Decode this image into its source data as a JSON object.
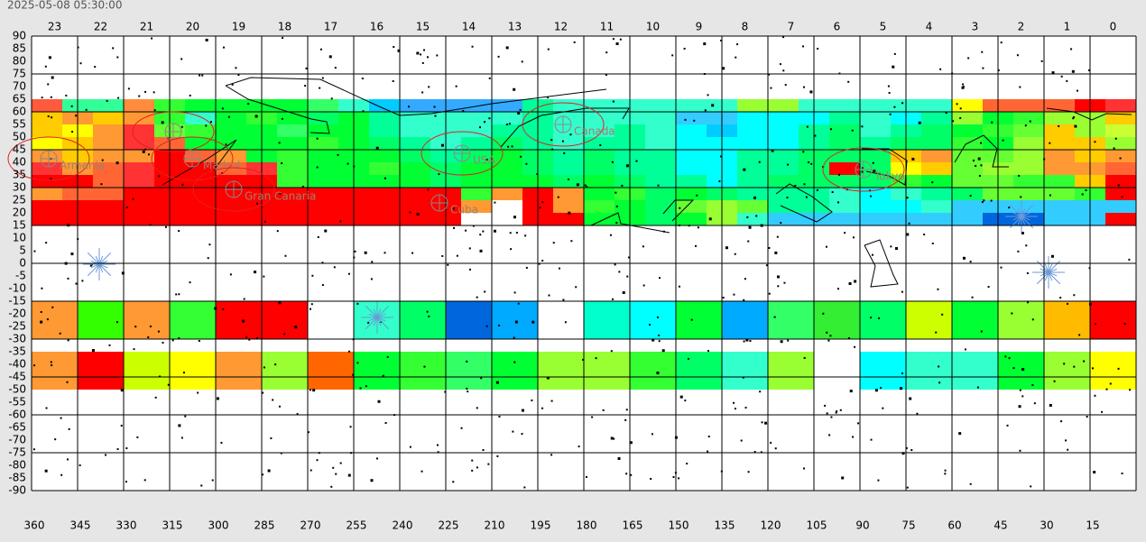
{
  "timestamp": "2025-05-08 05:30:00",
  "hour_labels": [
    23,
    22,
    21,
    20,
    19,
    18,
    17,
    16,
    15,
    14,
    13,
    12,
    11,
    10,
    9,
    8,
    7,
    6,
    5,
    4,
    3,
    2,
    1,
    0
  ],
  "ra_labels": [
    360,
    345,
    330,
    315,
    300,
    285,
    270,
    255,
    240,
    225,
    210,
    195,
    180,
    165,
    150,
    135,
    120,
    105,
    90,
    75,
    60,
    45,
    30,
    15
  ],
  "dec_labels": [
    90,
    85,
    80,
    75,
    70,
    65,
    60,
    55,
    50,
    45,
    40,
    35,
    30,
    25,
    20,
    15,
    10,
    5,
    0,
    -5,
    -10,
    -15,
    -20,
    -25,
    -30,
    -35,
    -40,
    -45,
    -50,
    -55,
    -60,
    -65,
    -70,
    -75,
    -80,
    -85,
    -90
  ],
  "locations": [
    "Armenia",
    "Madrid",
    "Gran Canaria",
    "Cuba",
    "USA",
    "Canada",
    "Tokyo"
  ],
  "heatmap": {
    "north_rows": [
      [
        "#ff5a3c",
        "#33ff99",
        "#33ff99",
        "#ff8c3c",
        "#33ff33",
        "#00ff33",
        "#00ff33",
        "#00ff33",
        "#00ff33",
        "#33ff66",
        "#33ffcc",
        "#00ccff",
        "#33aaff",
        "#33aaff",
        "#33aaff",
        "#33aaff",
        "#00ff99",
        "#33ffcc",
        "#33ffcc",
        "#33ffcc",
        "#33ffcc",
        "#33ffcc",
        "#33ffcc",
        "#99ff33",
        "#99ff33",
        "#33ffcc",
        "#33ffcc",
        "#33ffcc",
        "#33ffcc",
        "#33ffcc",
        "#ffff00",
        "#ff6633",
        "#ff6633",
        "#ff6633",
        "#ff0000",
        "#ff3333"
      ],
      [
        "#ffcc00",
        "#ff9933",
        "#ffcc00",
        "#ff9933",
        "#33ff33",
        "#33ffcc",
        "#00ff33",
        "#33ff33",
        "#00ff33",
        "#00ff66",
        "#00ff33",
        "#00ff99",
        "#33ffcc",
        "#33ffcc",
        "#33ffcc",
        "#33ffcc",
        "#00ff99",
        "#33ffcc",
        "#33ffcc",
        "#33ffcc",
        "#33ffcc",
        "#33ccff",
        "#33ccff",
        "#00ffff",
        "#00ffff",
        "#00ffff",
        "#00ff99",
        "#33ffcc",
        "#00ffff",
        "#00ff99",
        "#99ff33",
        "#00ff33",
        "#33ff33",
        "#99ff33",
        "#99ff33",
        "#ffcc00"
      ],
      [
        "#ffcc00",
        "#ffff00",
        "#ff9933",
        "#ff3333",
        "#66ff33",
        "#33ff33",
        "#00ff33",
        "#00ff33",
        "#33ff66",
        "#00ff33",
        "#00ff33",
        "#00ff99",
        "#33ffcc",
        "#33ffcc",
        "#33ffcc",
        "#00ff99",
        "#00ff99",
        "#33ffcc",
        "#33ffcc",
        "#00ff99",
        "#33ffcc",
        "#00ffff",
        "#00ccff",
        "#00ffff",
        "#00ffff",
        "#00ff99",
        "#00ff66",
        "#33ffcc",
        "#00ff99",
        "#00ff66",
        "#00ff33",
        "#33ff33",
        "#66ff33",
        "#ffcc00",
        "#99ff33",
        "#ccff33"
      ],
      [
        "#ffff00",
        "#ffcc00",
        "#ff9933",
        "#ff3333",
        "#ff6633",
        "#00ff33",
        "#00ff33",
        "#00ff33",
        "#00ff33",
        "#33ff33",
        "#00ff33",
        "#00ff66",
        "#00ff99",
        "#33ffcc",
        "#00ff99",
        "#00ff66",
        "#00ff99",
        "#33ffcc",
        "#00ff99",
        "#00ff99",
        "#33ffcc",
        "#00ffff",
        "#00ffff",
        "#00ffff",
        "#00ffff",
        "#00ff99",
        "#00ff66",
        "#00ff99",
        "#00ff66",
        "#00ff66",
        "#33ff33",
        "#00ff33",
        "#99ff33",
        "#ffcc00",
        "#ffcc00",
        "#99ff33"
      ],
      [
        "#ff9933",
        "#ffcc00",
        "#ff9933",
        "#ff9933",
        "#ff0000",
        "#ff6633",
        "#ff9933",
        "#00ff33",
        "#33ff33",
        "#00ff33",
        "#00ff33",
        "#00ff33",
        "#00ff66",
        "#00ff99",
        "#00ff66",
        "#00ff33",
        "#00ff66",
        "#00ff99",
        "#00ff66",
        "#00ff99",
        "#00ff99",
        "#00ffff",
        "#00ffff",
        "#00ff99",
        "#00ff99",
        "#00ff66",
        "#00ff66",
        "#00ff66",
        "#ffcc00",
        "#ff9933",
        "#66ff33",
        "#66ff33",
        "#99ff33",
        "#ff9933",
        "#ffcc00",
        "#ff9933"
      ],
      [
        "#ff3333",
        "#ff9933",
        "#ff6633",
        "#ff3333",
        "#ff0000",
        "#ff0000",
        "#ff6633",
        "#ff3333",
        "#33ff33",
        "#00ff33",
        "#00ff33",
        "#33ff33",
        "#00ff33",
        "#00ff66",
        "#00ff33",
        "#00ff33",
        "#00ff66",
        "#00ff99",
        "#00ff66",
        "#00ff99",
        "#00ff99",
        "#00ffff",
        "#00ffff",
        "#00ff99",
        "#00ff99",
        "#00ff66",
        "#ff0000",
        "#00ff66",
        "#ffff00",
        "#ffcc00",
        "#66ff33",
        "#99ff33",
        "#99ff33",
        "#ff9933",
        "#ff9933",
        "#ff6633"
      ],
      [
        "#ff0000",
        "#ff0000",
        "#ff6633",
        "#ff3333",
        "#ff0000",
        "#ff0000",
        "#ff0000",
        "#ff0000",
        "#33ff33",
        "#00ff33",
        "#00ff33",
        "#00ff33",
        "#00ff33",
        "#00ff66",
        "#00ff33",
        "#00ff33",
        "#00ff33",
        "#00ff66",
        "#00ff33",
        "#00ff66",
        "#00ff99",
        "#00ff99",
        "#00ffff",
        "#00ff99",
        "#00ff66",
        "#00ff66",
        "#00ff66",
        "#00ff66",
        "#33ff33",
        "#00ff33",
        "#66ff33",
        "#66ff33",
        "#33ff33",
        "#33ff33",
        "#ffcc00",
        "#ff0000"
      ],
      [
        "#ff9933",
        "#ff6633",
        "#ff6633",
        "#ff0000",
        "#ff0000",
        "#ff0000",
        "#ff0000",
        "#ff0000",
        "#ff0000",
        "#ff0000",
        "#ff0000",
        "#ff0000",
        "#ff0000",
        "#ff0000",
        "#33ff33",
        "#ff9933",
        "#ff0000",
        "#ff9933",
        "#00ff33",
        "#33ff33",
        "#00ff66",
        "#00ff33",
        "#00ff66",
        "#00ff99",
        "#00ff99",
        "#00ff99",
        "#33ffcc",
        "#00ffff",
        "#33ffcc",
        "#00ff99",
        "#00ff66",
        "#66ff33",
        "#66ff33",
        "#66ff33",
        "#33ff33",
        "#ff0000"
      ],
      [
        "#ff0000",
        "#ff0000",
        "#ff0000",
        "#ff0000",
        "#ff0000",
        "#ff0000",
        "#ff0000",
        "#ff0000",
        "#ff0000",
        "#ff0000",
        "#ff0000",
        "#ff0000",
        "#ff0000",
        "#ff0000",
        "#ff9933",
        "#ffffff",
        "#ff0000",
        "#ff9933",
        "#33ff33",
        "#00ff33",
        "#00ff66",
        "#66ff33",
        "#99ff33",
        "#66ff33",
        "#00ff99",
        "#00ff99",
        "#33ffcc",
        "#00ffff",
        "#00ffff",
        "#33ffcc",
        "#33ccff",
        "#33ccff",
        "#33ccff",
        "#33ccff",
        "#33ccff",
        "#33ccff"
      ],
      [
        "#ff0000",
        "#ff0000",
        "#ff0000",
        "#ff0000",
        "#ff0000",
        "#ff0000",
        "#ff0000",
        "#ff0000",
        "#ff0000",
        "#ff0000",
        "#ff0000",
        "#ff0000",
        "#ff0000",
        "#ff0000",
        "#ffffff",
        "#ffffff",
        "#ff0000",
        "#ff0000",
        "#00ff33",
        "#00ff33",
        "#00ff66",
        "#00ff33",
        "#99ff33",
        "#33ffcc",
        "#33ccff",
        "#33ccff",
        "#33ccff",
        "#33ccff",
        "#33ccff",
        "#33ccff",
        "#33ccff",
        "#0066dd",
        "#0066dd",
        "#33ccff",
        "#33ccff",
        "#ff0000"
      ]
    ],
    "south_band_1": [
      "#ff9933",
      "#33ff00",
      "#ff9933",
      "#33ff33",
      "#ff0000",
      "#ff0000",
      "#ffffff",
      "#33ffcc",
      "#00ff66",
      "#0066dd",
      "#00aaff",
      "#ffffff",
      "#00ffcc",
      "#00ffff",
      "#00ff33",
      "#00aaff",
      "#33ff66",
      "#33ee33",
      "#00ff66",
      "#ccff00",
      "#00ff33",
      "#99ff33",
      "#ffbb00",
      "#ff0000"
    ],
    "south_band_2": [
      "#ff9933",
      "#ff0000",
      "#ccff00",
      "#ffff00",
      "#ff9933",
      "#99ff33",
      "#ff6600",
      "#00ff33",
      "#33ff33",
      "#33ff66",
      "#00ff33",
      "#99ff33",
      "#99ff33",
      "#33ff33",
      "#00ff66",
      "#33ffcc",
      "#99ff33",
      "#ffffff",
      "#00ffff",
      "#33ffcc",
      "#33ffcc",
      "#00ff33",
      "#99ff33",
      "#ffff00"
    ]
  }
}
